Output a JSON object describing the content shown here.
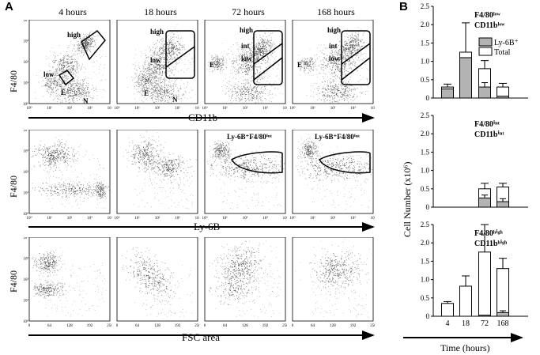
{
  "panel_a": {
    "letter": "A",
    "time_labels": [
      "4 hours",
      "18 hours",
      "72 hours",
      "168 hours"
    ],
    "rows": [
      {
        "ylabel": "F4/80",
        "xlabel": "CD11b",
        "x_ticks": [
          "10⁰",
          "10¹",
          "10²",
          "10³",
          "10⁴"
        ],
        "y_ticks": [
          "10⁰",
          "10¹",
          "10²",
          "10³",
          "10⁴"
        ],
        "gate_labels": [
          [
            "high",
            "low",
            "E",
            "N"
          ],
          [
            "high",
            "low",
            "E",
            "N"
          ],
          [
            "high",
            "int",
            "low",
            "E"
          ],
          [
            "high",
            "int",
            "low",
            "E"
          ]
        ]
      },
      {
        "ylabel": "F4/80",
        "xlabel": "Ly-6B",
        "x_ticks": [
          "10⁰",
          "10¹",
          "10²",
          "10³",
          "10⁴"
        ],
        "y_ticks": [
          "10⁰",
          "10¹",
          "10²",
          "10³",
          "10⁴"
        ],
        "gate_label": "Ly-6B⁺F4/80ⁱⁿᵗ"
      },
      {
        "ylabel": "F4/80",
        "xlabel": "FSC area",
        "x_ticks": [
          "0",
          "64",
          "128",
          "192",
          "256"
        ],
        "y_ticks": [
          "10⁰",
          "10¹",
          "10²",
          "10³",
          "10⁴"
        ]
      }
    ]
  },
  "panel_b": {
    "letter": "B",
    "ylabel": "Cell Number (x10⁶)",
    "xlabel": "Time (hours)",
    "legend": [
      "Ly-6B⁺",
      "Total"
    ],
    "colors": {
      "ly6b": "#b3b3b3",
      "total": "#ffffff"
    },
    "chart_data": [
      {
        "type": "bar",
        "title_line1": "F4/80ˡᵒʷ",
        "title_line2": "CD11bˡᵒʷ",
        "categories": [
          "4",
          "18",
          "72",
          "168"
        ],
        "ylim": [
          0,
          2.5
        ],
        "yticks": [
          "0",
          "0.5",
          "1.0",
          "1.5",
          "2.0",
          "2.5"
        ],
        "series": [
          {
            "name": "Total",
            "values": [
              0.3,
              1.25,
              0.8,
              0.3
            ],
            "errors": [
              0.08,
              0.8,
              0.22,
              0.1
            ]
          },
          {
            "name": "Ly-6B⁺",
            "values": [
              0.25,
              1.1,
              0.3,
              0.05
            ],
            "errors": [
              0,
              0,
              0.12,
              0
            ]
          }
        ]
      },
      {
        "type": "bar",
        "title_line1": "F4/80ⁱⁿᵗ",
        "title_line2": "CD11bⁱⁿᵗ",
        "categories": [
          "4",
          "18",
          "72",
          "168"
        ],
        "ylim": [
          0,
          2.5
        ],
        "yticks": [
          "0",
          "0.5",
          "1.0",
          "1.5",
          "2.0",
          "2.5"
        ],
        "series": [
          {
            "name": "Total",
            "values": [
              0,
              0,
              0.5,
              0.55
            ],
            "errors": [
              0,
              0,
              0.15,
              0.1
            ]
          },
          {
            "name": "Ly-6B⁺",
            "values": [
              0,
              0,
              0.25,
              0.15
            ],
            "errors": [
              0,
              0,
              0.08,
              0.08
            ]
          }
        ]
      },
      {
        "type": "bar",
        "title_line1": "F4/80ʰⁱᵍʰ",
        "title_line2": "CD11bʰⁱᵍʰ",
        "categories": [
          "4",
          "18",
          "72",
          "168"
        ],
        "ylim": [
          0,
          2.5
        ],
        "yticks": [
          "0",
          "0.5",
          "1.0",
          "1.5",
          "2.0",
          "2.5"
        ],
        "series": [
          {
            "name": "Total",
            "values": [
              0.35,
              0.82,
              1.75,
              1.3
            ],
            "errors": [
              0.05,
              0.28,
              0.75,
              0.28
            ]
          },
          {
            "name": "Ly-6B⁺",
            "values": [
              0,
              0,
              0.03,
              0.1
            ],
            "errors": [
              0,
              0,
              0,
              0.05
            ]
          }
        ]
      }
    ]
  }
}
